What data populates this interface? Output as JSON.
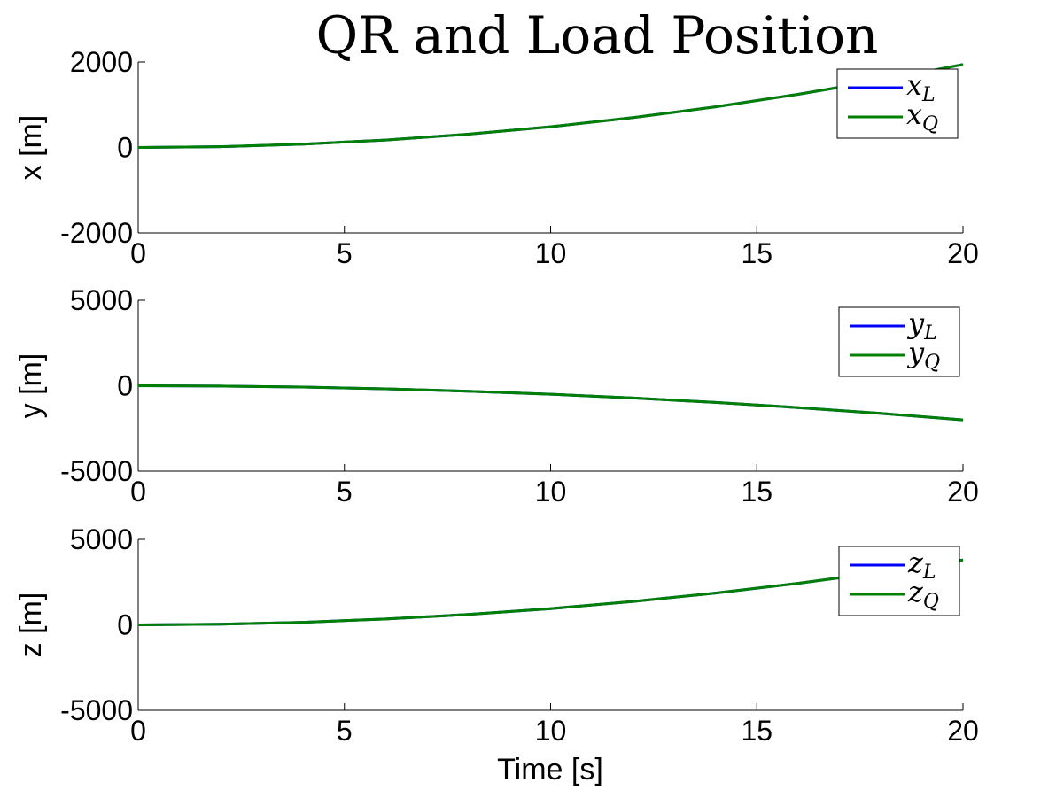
{
  "chart_data": {
    "title": "QR and Load Position",
    "xlabel": "Time [s]",
    "panels": [
      {
        "type": "line",
        "ylabel": "x [m]",
        "xlim": [
          0,
          20
        ],
        "ylim": [
          -2000,
          2000
        ],
        "xticks": [
          "0",
          "5",
          "10",
          "15",
          "20"
        ],
        "yticks": [
          "2000",
          "0",
          "-2000"
        ],
        "ytick_values": [
          2000,
          0,
          -2000
        ],
        "legend_position": "top-right",
        "series": [
          {
            "name": "x",
            "sub": "L",
            "color": "#0000ff",
            "x": [
              0,
              2,
              4,
              6,
              8,
              10,
              12,
              14,
              16,
              18,
              20
            ],
            "y": [
              0,
              19,
              78,
              175,
              311,
              485,
              699,
              951,
              1243,
              1573,
              1942
            ]
          },
          {
            "name": "x",
            "sub": "Q",
            "color": "#008000",
            "x": [
              0,
              2,
              4,
              6,
              8,
              10,
              12,
              14,
              16,
              18,
              20
            ],
            "y": [
              0,
              19,
              78,
              175,
              311,
              485,
              699,
              951,
              1243,
              1573,
              1942
            ]
          }
        ]
      },
      {
        "type": "line",
        "ylabel": "y [m]",
        "xlim": [
          0,
          20
        ],
        "ylim": [
          -5000,
          5000
        ],
        "xticks": [
          "0",
          "5",
          "10",
          "15",
          "20"
        ],
        "yticks": [
          "5000",
          "0",
          "-5000"
        ],
        "ytick_values": [
          5000,
          0,
          -5000
        ],
        "legend_position": "top-right",
        "series": [
          {
            "name": "y",
            "sub": "L",
            "color": "#0000ff",
            "x": [
              0,
              2,
              4,
              6,
              8,
              10,
              12,
              14,
              16,
              18,
              20
            ],
            "y": [
              0,
              -20,
              -80,
              -180,
              -320,
              -500,
              -720,
              -980,
              -1280,
              -1620,
              -2000
            ]
          },
          {
            "name": "y",
            "sub": "Q",
            "color": "#008000",
            "x": [
              0,
              2,
              4,
              6,
              8,
              10,
              12,
              14,
              16,
              18,
              20
            ],
            "y": [
              0,
              -20,
              -80,
              -180,
              -320,
              -500,
              -720,
              -980,
              -1280,
              -1620,
              -2000
            ]
          }
        ]
      },
      {
        "type": "line",
        "ylabel": "z [m]",
        "xlim": [
          0,
          20
        ],
        "ylim": [
          -5000,
          5000
        ],
        "xticks": [
          "0",
          "5",
          "10",
          "15",
          "20"
        ],
        "yticks": [
          "5000",
          "0",
          "-5000"
        ],
        "ytick_values": [
          5000,
          0,
          -5000
        ],
        "legend_position": "top-right",
        "series": [
          {
            "name": "z",
            "sub": "L",
            "color": "#0000ff",
            "x": [
              0,
              2,
              4,
              6,
              8,
              10,
              12,
              14,
              16,
              18,
              20
            ],
            "y": [
              0,
              38,
              152,
              342,
              608,
              950,
              1368,
              1862,
              2432,
              3078,
              3800
            ]
          },
          {
            "name": "z",
            "sub": "Q",
            "color": "#008000",
            "x": [
              0,
              2,
              4,
              6,
              8,
              10,
              12,
              14,
              16,
              18,
              20
            ],
            "y": [
              0,
              38,
              152,
              342,
              608,
              950,
              1368,
              1862,
              2432,
              3078,
              3800
            ]
          }
        ]
      }
    ]
  }
}
